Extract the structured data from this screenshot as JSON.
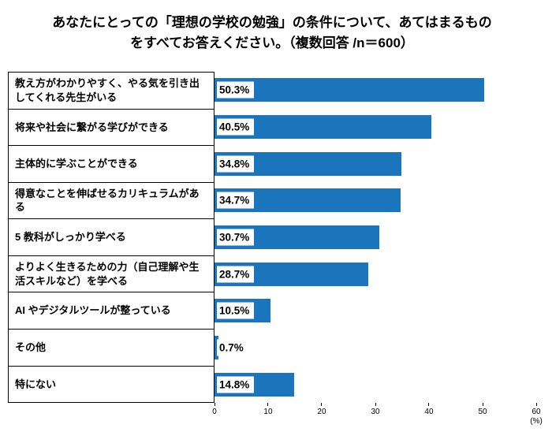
{
  "title": {
    "line1": "あなたにとっての「理想の学校の勉強」の条件について、あてはまるもの",
    "line2": "をすべてお答えください。（複数回答 /n＝600）"
  },
  "chart_data": {
    "type": "bar",
    "orientation": "horizontal",
    "title": "あなたにとっての「理想の学校の勉強」の条件について、あてはまるものをすべてお答えください。（複数回答 /n＝600）",
    "n": 600,
    "categories": [
      "教え方がわかりやすく、やる気を引き出してくれる先生がいる",
      "将来や社会に繋がる学びができる",
      "主体的に学ぶことができる",
      "得意なことを伸ばせるカリキュラムがある",
      "5 教科がしっかり学べる",
      "よりよく生きるための力（自己理解や生活スキルなど）を学べる",
      "AI やデジタルツールが整っている",
      "その他",
      "特にない"
    ],
    "values": [
      50.3,
      40.5,
      34.8,
      34.7,
      30.7,
      28.7,
      10.5,
      0.7,
      14.8
    ],
    "value_labels": [
      "50.3%",
      "40.5%",
      "34.8%",
      "34.7%",
      "30.7%",
      "28.7%",
      "10.5%",
      "0.7%",
      "14.8%"
    ],
    "xlim": [
      0,
      60
    ],
    "x_ticks": [
      0,
      10,
      20,
      30,
      40,
      50,
      60
    ],
    "x_unit": "(%)",
    "bar_color": "#1B75BC",
    "grid": false,
    "legend": "none"
  }
}
